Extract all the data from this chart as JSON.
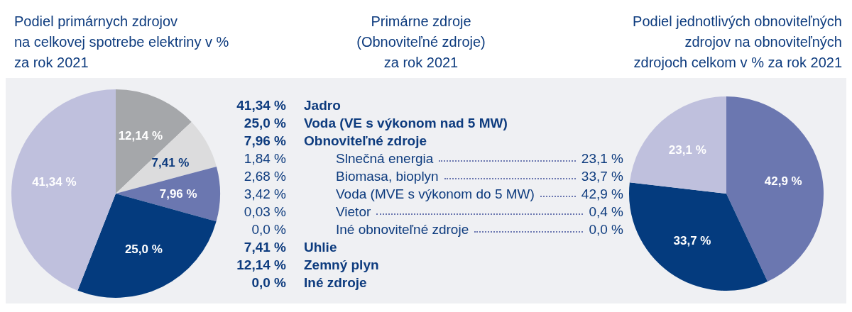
{
  "chart_data": [
    {
      "type": "pie",
      "title": "Podiel primárnych zdrojov\nna celkovej spotrebe elektriny v %\nza rok 2021",
      "categories": [
        null,
        null,
        null,
        null,
        null
      ],
      "values": [
        12.14,
        7.41,
        7.96,
        25.0,
        41.34
      ],
      "colors": [
        "#a5a7aa",
        "#dcdcdd",
        "#6b77b0",
        "#043b7e",
        "#bfc0dd"
      ],
      "value_labels": [
        "12,14 %",
        "7,41 %",
        "7,96 %",
        "25,0 %",
        "41,34 %"
      ]
    },
    {
      "type": "other",
      "title": "Primárne zdroje\n(Obnoviteľné zdroje)\nza rok 2021",
      "categories": [
        "Jadro",
        "Voda (VE s výkonom nad 5 MW)",
        "Obnoviteľné zdroje",
        "Slnečná energia",
        "Biomasa, bioplyn",
        "Voda (MVE s výkonom do 5 MW)",
        "Vietor",
        "Iné obnoviteľné zdroje",
        "Uhlie",
        "Zemný plyn",
        "Iné zdroje"
      ],
      "series": [
        {
          "values": [
            41.34,
            25.0,
            7.96,
            1.84,
            2.68,
            3.42,
            0.03,
            0.0,
            7.41,
            12.14,
            0.0
          ],
          "value_labels": [
            "41,34 %",
            "25,0 %",
            "7,96 %",
            "1,84 %",
            "2,68 %",
            "3,42 %",
            "0,03 %",
            "0,0 %",
            "7,41 %",
            "12,14 %",
            "0,0 %"
          ]
        },
        {
          "values": [
            null,
            null,
            null,
            23.1,
            33.7,
            42.9,
            0.4,
            0.0,
            null,
            null,
            null
          ],
          "value_labels": [
            null,
            null,
            null,
            "23,1 %",
            "33,7 %",
            "42,9 %",
            "0,4 %",
            "0,0 %",
            null,
            null,
            null
          ]
        }
      ]
    },
    {
      "type": "pie",
      "title": "Podiel jednotlivých obnoviteľných\nzdrojov na obnoviteľných\nzdrojoch celkom v % za rok 2021",
      "categories": [
        null,
        null,
        null
      ],
      "values": [
        42.9,
        33.7,
        23.1
      ],
      "colors": [
        "#6b77b0",
        "#043b7e",
        "#bfc0dd"
      ],
      "value_labels": [
        "42,9 %",
        "33,7 %",
        "23,1 %"
      ]
    }
  ]
}
